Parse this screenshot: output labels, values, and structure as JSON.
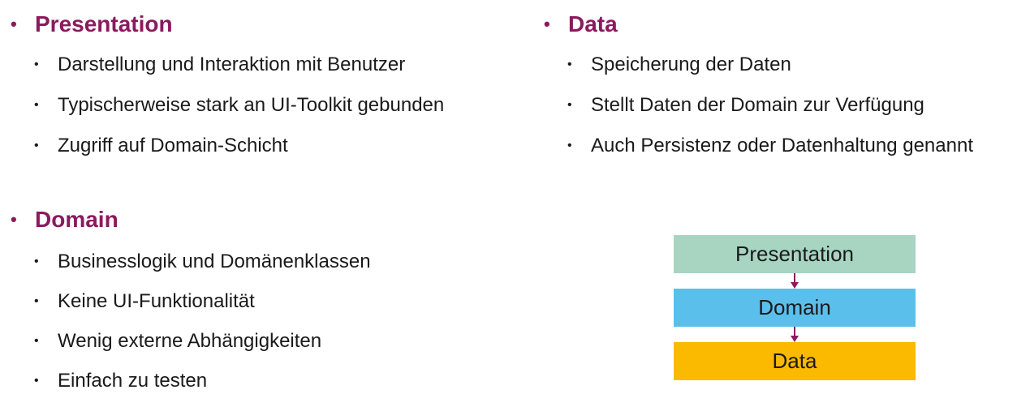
{
  "sections": {
    "presentation": {
      "bullet": "•",
      "title": "Presentation",
      "items": [
        "Darstellung und Interaktion mit Benutzer",
        "Typischerweise stark an UI-Toolkit gebunden",
        "Zugriff auf Domain-Schicht"
      ]
    },
    "data": {
      "bullet": "•",
      "title": "Data",
      "items": [
        "Speicherung der Daten",
        "Stellt Daten der Domain zur Verfügung",
        "Auch Persistenz oder Datenhaltung genannt"
      ]
    },
    "domain": {
      "bullet": "•",
      "title": "Domain",
      "items": [
        "Businesslogik und Domänenklassen",
        "Keine UI-Funktionalität",
        "Wenig externe Abhängigkeiten",
        "Einfach zu testen"
      ]
    }
  },
  "sub_bullet": "•",
  "diagram": {
    "layers": [
      "Presentation",
      "Domain",
      "Data"
    ],
    "colors": {
      "presentation": "#a8d5c2",
      "domain": "#5bbfec",
      "data": "#fbb900",
      "arrow": "#8b1a5e",
      "heading": "#8b1a5e"
    }
  }
}
